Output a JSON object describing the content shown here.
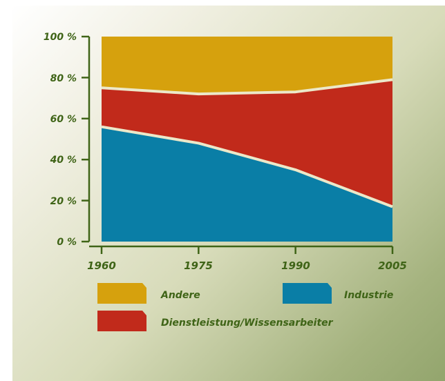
{
  "chart_data": {
    "type": "area",
    "stacked": true,
    "x": [
      "1960",
      "1975",
      "1990",
      "2005"
    ],
    "series": [
      {
        "name": "Industrie",
        "color": "#0a7ea6",
        "values": [
          56,
          48,
          35,
          17
        ]
      },
      {
        "name": "Dienstleistung/Wissensarbeiter",
        "color": "#c12a1b",
        "values": [
          19,
          24,
          38,
          62
        ]
      },
      {
        "name": "Andere",
        "color": "#d6a10d",
        "values": [
          25,
          28,
          27,
          21
        ]
      }
    ],
    "ylim": [
      0,
      100
    ],
    "y_ticks": [
      "0 %",
      "20 %",
      "40 %",
      "60 %",
      "80 %",
      "100 %"
    ],
    "x_ticks": [
      "1960",
      "1975",
      "1990",
      "2005"
    ],
    "legend": [
      {
        "label": "Andere",
        "color": "#d6a10d"
      },
      {
        "label": "Industrie",
        "color": "#0a7ea6"
      },
      {
        "label": "Dienstleistung/Wissensarbeiter",
        "color": "#c12a1b"
      }
    ],
    "grid": false,
    "legend_position": "bottom"
  }
}
